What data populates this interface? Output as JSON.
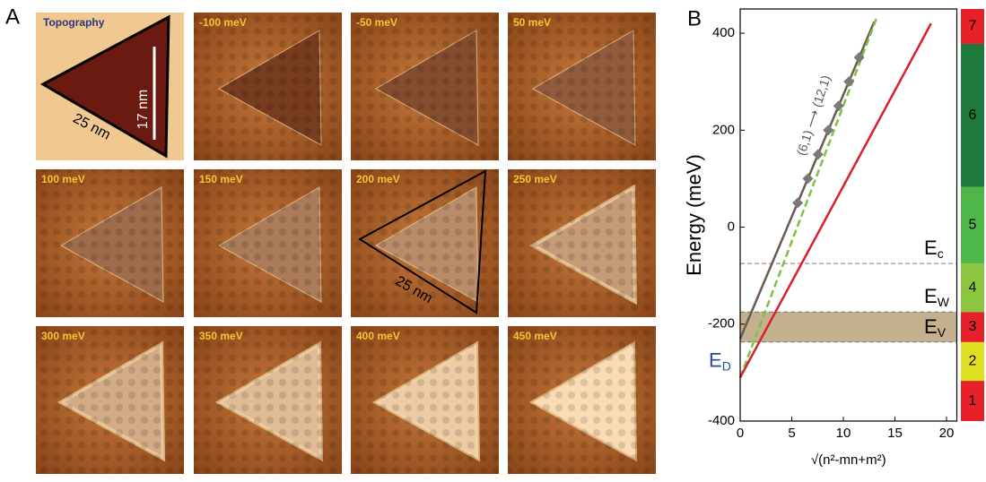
{
  "figure_a": {
    "panel_label": "A",
    "images": [
      {
        "label": "Topography"
      },
      {
        "label": "-100 meV"
      },
      {
        "label": "-50 meV"
      },
      {
        "label": "50 meV"
      },
      {
        "label": "100 meV"
      },
      {
        "label": "150 meV"
      },
      {
        "label": "200 meV"
      },
      {
        "label": "250 meV"
      },
      {
        "label": "300 meV"
      },
      {
        "label": "350 meV"
      },
      {
        "label": "400 meV"
      },
      {
        "label": "450 meV"
      }
    ],
    "topography_height": "17 nm",
    "topography_side": "25 nm",
    "triangle_side": "25 nm"
  },
  "chart_data": {
    "type": "line",
    "panel_label": "B",
    "y_label": "Energy (meV)",
    "x_label": "√(n²-mn+m²)",
    "annotation": "(6,1) ⟶ (12,1)",
    "xlim": [
      0,
      21
    ],
    "ylim": [
      -400,
      450
    ],
    "xticks": [
      0,
      5,
      10,
      15,
      20
    ],
    "yticks": [
      -400,
      -200,
      0,
      200,
      400
    ],
    "series": [
      {
        "color": "#6b5a50",
        "style": "solid",
        "x": [
          0,
          13
        ],
        "values": [
          -230,
          424
        ]
      },
      {
        "color": "#7cc242",
        "style": "dashed",
        "x": [
          0,
          13.2
        ],
        "values": [
          -310,
          430
        ]
      },
      {
        "color": "#d9202a",
        "style": "solid",
        "x": [
          0,
          18.5
        ],
        "values": [
          -310,
          420
        ]
      },
      {
        "color": "#7a7a7a",
        "style": "marker",
        "x": [
          5.57,
          6.56,
          7.55,
          8.54,
          9.54,
          10.54,
          11.53
        ],
        "values": [
          50,
          100,
          150,
          200,
          250,
          300,
          350
        ]
      }
    ],
    "hlines": [
      {
        "value": -75,
        "label": "E",
        "subscript": "c"
      },
      {
        "value": -175,
        "label": "E",
        "subscript": "W"
      },
      {
        "value": -237,
        "label": "E",
        "subscript": "V"
      }
    ],
    "shaded_band": {
      "range": [
        -237,
        -175
      ],
      "color": "#c3b08f"
    },
    "dirac_label": {
      "value": -310,
      "label": "E",
      "subscript": "D"
    },
    "color_bands": [
      {
        "label": "1",
        "color": "#e8202a",
        "range": [
          -400,
          -317
        ]
      },
      {
        "label": "2",
        "color": "#dfe021",
        "range": [
          -317,
          -237
        ]
      },
      {
        "label": "3",
        "color": "#e8202a",
        "range": [
          -237,
          -175
        ]
      },
      {
        "label": "4",
        "color": "#8cc63f",
        "range": [
          -175,
          -75
        ]
      },
      {
        "label": "5",
        "color": "#4db848",
        "range": [
          -75,
          83
        ]
      },
      {
        "label": "6",
        "color": "#1e7a3c",
        "range": [
          83,
          378
        ]
      },
      {
        "label": "7",
        "color": "#e8202a",
        "range": [
          378,
          450
        ]
      }
    ]
  }
}
